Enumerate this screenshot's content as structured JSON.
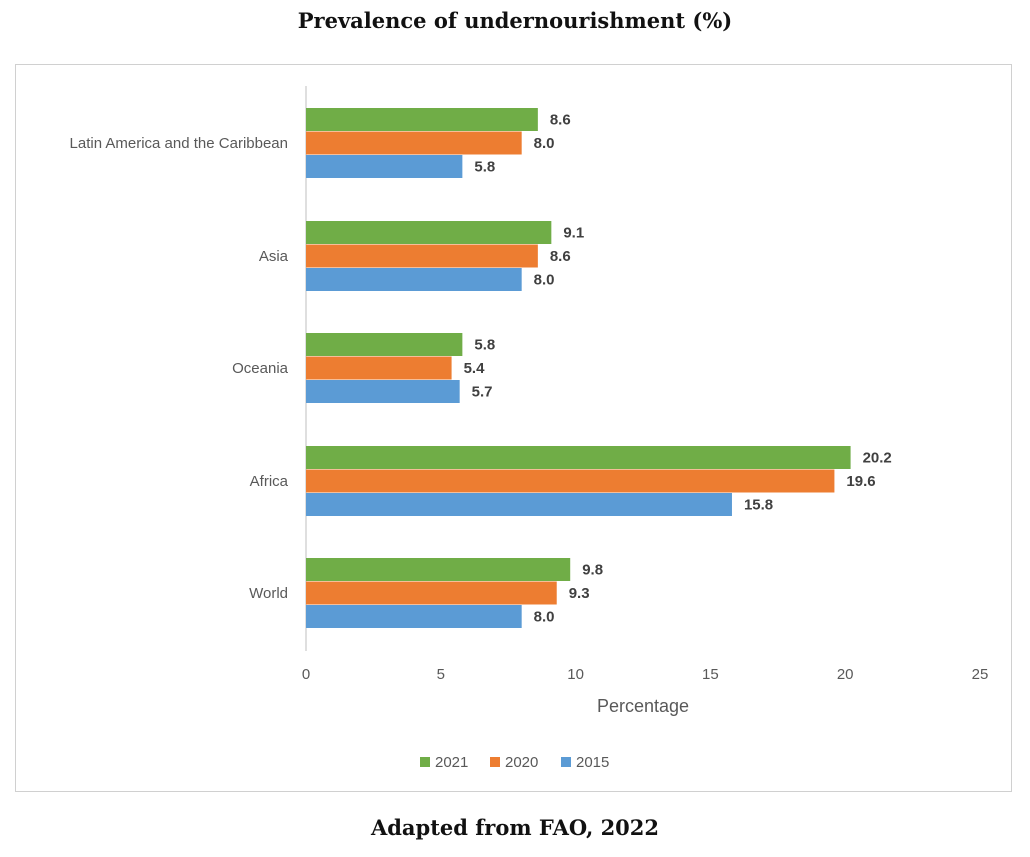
{
  "title": "Prevalence of undernourishment (%)",
  "caption": "Adapted from FAO, 2022",
  "chart_data": {
    "type": "bar",
    "orientation": "horizontal",
    "categories": [
      "Latin America and the Caribbean",
      "Asia",
      "Oceania",
      "Africa",
      "World"
    ],
    "series": [
      {
        "name": "2021",
        "color": "#70ad47",
        "values": [
          8.6,
          9.1,
          5.8,
          20.2,
          9.8
        ]
      },
      {
        "name": "2020",
        "color": "#ed7d31",
        "values": [
          8.0,
          8.6,
          5.4,
          19.6,
          9.3
        ]
      },
      {
        "name": "2015",
        "color": "#5b9bd5",
        "values": [
          5.8,
          8.0,
          5.7,
          15.8,
          8.0
        ]
      }
    ],
    "data_labels": [
      [
        "8.6",
        "9.1",
        "5.8",
        "20.2",
        "9.8"
      ],
      [
        "8.0",
        "8.6",
        "5.4",
        "19.6",
        "9.3"
      ],
      [
        "5.8",
        "8.0",
        "5.7",
        "15.8",
        "8.0"
      ]
    ],
    "xlabel": "Percentage",
    "xlim": [
      0,
      25
    ],
    "xticks": [
      "0",
      "5",
      "10",
      "15",
      "20",
      "25"
    ],
    "legend": [
      "2021",
      "2020",
      "2015"
    ],
    "legend_position": "bottom",
    "grid": false
  }
}
